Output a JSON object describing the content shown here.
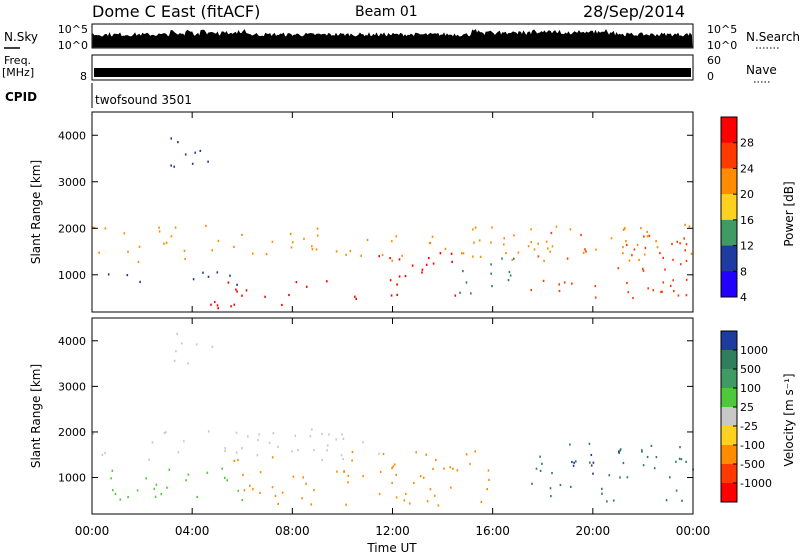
{
  "header": {
    "station": "Dome C East (fitACF)",
    "beam": "Beam 01",
    "date": "28/Sep/2014"
  },
  "nsky_panel": {
    "left_label": "N.Sky",
    "ticks_left": [
      "10^5",
      "10^0"
    ],
    "ticks_right": [
      "10^5",
      "10^0"
    ],
    "right_label": "N.Search"
  },
  "freq_panel": {
    "left_label_top": "Freq.",
    "left_label_unit": "[MHz]",
    "tick_left": "8",
    "ticks_right": [
      "60",
      "0"
    ],
    "right_label": "Nave",
    "cpid_label": "CPID",
    "cpid_text": "twofsound 3501"
  },
  "colors": {
    "red": "#ff0000",
    "orange": "#ff8c00",
    "yellow": "#ffd21f",
    "gray": "#c8c8c8",
    "green": "#4ec93a",
    "darkgreen": "#2f7f5e",
    "blue": "#1e3ca0",
    "brightblue": "#2200ff"
  },
  "chart_data": [
    {
      "type": "heatmap",
      "name": "power",
      "ylabel": "Slant Range [km]",
      "y_ticks": [
        "4000",
        "3000",
        "2000",
        "1000"
      ],
      "y_tick_values": [
        4000,
        3000,
        2000,
        1000
      ],
      "ylim": [
        200,
        4500
      ],
      "xlim": [
        0,
        24
      ],
      "colorbar": {
        "label": "Power [dB]",
        "ticks": [
          "28",
          "24",
          "20",
          "16",
          "12",
          "8",
          "4"
        ],
        "colors": [
          "#ff0000",
          "#ff3a00",
          "#ff8c00",
          "#ffd21f",
          "#3f9a64",
          "#1e3ca0",
          "#2200ff"
        ]
      },
      "scatter_bands": [
        {
          "x": [
            0.0,
            24.0
          ],
          "y": [
            1300,
            2100
          ],
          "color": "#ff8c00"
        },
        {
          "x": [
            0.2,
            6.0
          ],
          "y": [
            800,
            1100
          ],
          "color": "#1e3ca0"
        },
        {
          "x": [
            4.5,
            10.5
          ],
          "y": [
            300,
            900
          ],
          "color": "#ff0000"
        },
        {
          "x": [
            10.5,
            14.5
          ],
          "y": [
            500,
            1500
          ],
          "color": "#ff0000"
        },
        {
          "x": [
            17.5,
            24.0
          ],
          "y": [
            500,
            2000
          ],
          "color": "#ff3a00"
        },
        {
          "x": [
            14.5,
            17.5
          ],
          "y": [
            600,
            1400
          ],
          "color": "#2f7f5e"
        },
        {
          "x": [
            3.0,
            5.0
          ],
          "y": [
            3300,
            4200
          ],
          "color": "#1e3ca0"
        }
      ]
    },
    {
      "type": "heatmap",
      "name": "velocity",
      "ylabel": "Slant Range [km]",
      "y_ticks": [
        "4000",
        "3000",
        "2000",
        "1000"
      ],
      "y_tick_values": [
        4000,
        3000,
        2000,
        1000
      ],
      "ylim": [
        200,
        4500
      ],
      "xlim": [
        0,
        24
      ],
      "colorbar": {
        "label": "Velocity [m s⁻¹]",
        "ticks": [
          "1000",
          "500",
          "100",
          "25",
          "-25",
          "-100",
          "-500",
          "-1000"
        ],
        "colors": [
          "#1e3ca0",
          "#2f7f5e",
          "#3f9a64",
          "#4ec93a",
          "#c8c8c8",
          "#ffd21f",
          "#ff8c00",
          "#ff3a00",
          "#ff0000"
        ]
      },
      "scatter_bands": [
        {
          "x": [
            0.0,
            11.5
          ],
          "y": [
            1400,
            2100
          ],
          "color": "#c8c8c8"
        },
        {
          "x": [
            0.2,
            6.0
          ],
          "y": [
            500,
            1300
          ],
          "color": "#4ec93a"
        },
        {
          "x": [
            5.5,
            16.0
          ],
          "y": [
            400,
            1600
          ],
          "color": "#ff8c00"
        },
        {
          "x": [
            17.5,
            24.0
          ],
          "y": [
            500,
            1800
          ],
          "color": "#2f7f5e"
        },
        {
          "x": [
            19.0,
            21.5
          ],
          "y": [
            1100,
            1700
          ],
          "color": "#1e3ca0"
        },
        {
          "x": [
            3.0,
            5.0
          ],
          "y": [
            3500,
            4200
          ],
          "color": "#c8c8c8"
        }
      ]
    }
  ],
  "x_axis": {
    "label": "Time UT",
    "ticks": [
      "00:00",
      "04:00",
      "08:00",
      "12:00",
      "16:00",
      "20:00",
      "00:00"
    ],
    "tick_values": [
      0,
      4,
      8,
      12,
      16,
      20,
      24
    ]
  }
}
